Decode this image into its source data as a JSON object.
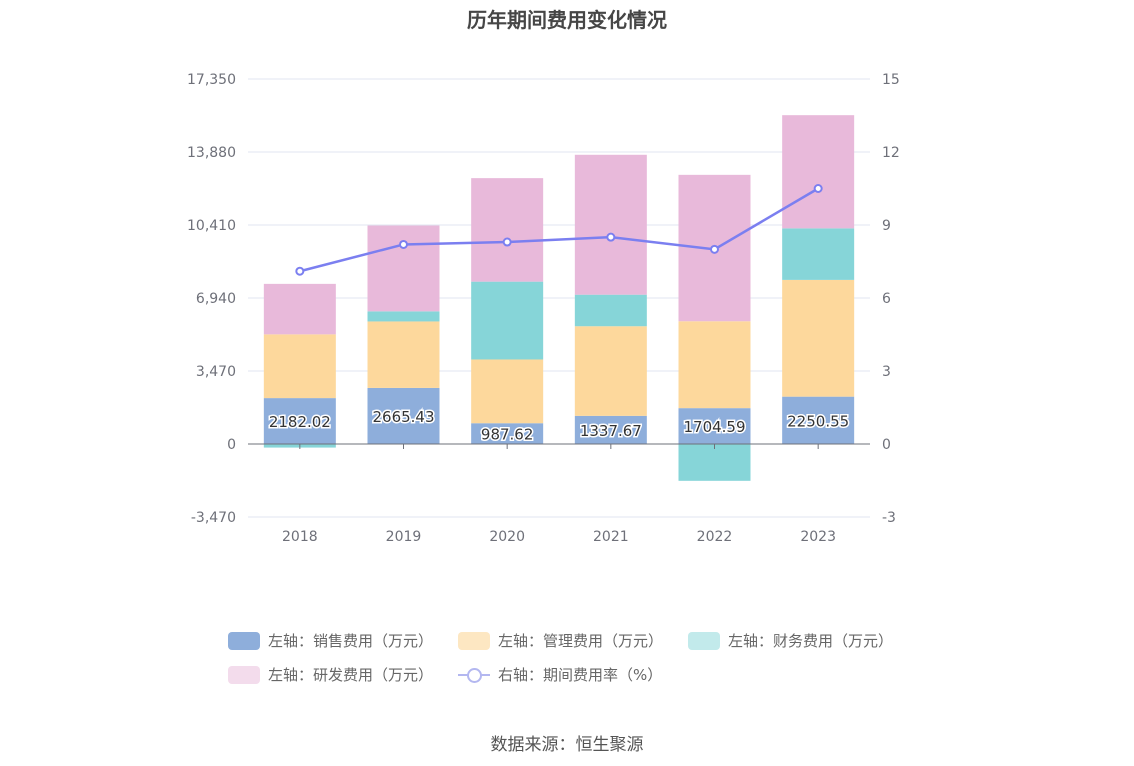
{
  "chart_data": {
    "type": "bar",
    "title": "历年期间费用变化情况",
    "categories": [
      "2018",
      "2019",
      "2020",
      "2021",
      "2022",
      "2023"
    ],
    "left_axis": {
      "ticks": [
        "17,350",
        "13,880",
        "10,410",
        "6,940",
        "3,470",
        "0",
        "-3,470"
      ],
      "ylim": [
        -3470,
        17350
      ]
    },
    "right_axis": {
      "ticks": [
        "15",
        "12",
        "9",
        "6",
        "3",
        "0",
        "-3"
      ],
      "ylim": [
        -3,
        15
      ]
    },
    "series": [
      {
        "name": "左轴：销售费用（万元）",
        "color": "#8eaedb",
        "values": [
          2182.02,
          2665.43,
          987.62,
          1337.67,
          1704.59,
          2250.55
        ]
      },
      {
        "name": "左轴：管理费用（万元）",
        "color": "#fdd89c",
        "values": [
          3030,
          3160,
          3030,
          4260,
          4130,
          5550
        ]
      },
      {
        "name": "左轴：财务费用（万元）",
        "color": "#86d5d8",
        "values": [
          -170,
          480,
          3700,
          1500,
          -1750,
          2450
        ]
      },
      {
        "name": "左轴：研发费用（万元）",
        "color": "#e8b9da",
        "values": [
          2400,
          4080,
          4920,
          6650,
          6960,
          5380
        ]
      }
    ],
    "line_series": {
      "name": "右轴：期间费用率（%）",
      "color": "#7b7ff0",
      "values": [
        7.1,
        8.2,
        8.3,
        8.5,
        8.0,
        10.5
      ]
    },
    "data_labels": [
      "2182.02",
      "2665.43",
      "987.62",
      "1337.67",
      "1704.59",
      "2250.55"
    ],
    "legend_position": "bottom",
    "grid": true
  },
  "source": "数据来源：恒生聚源"
}
